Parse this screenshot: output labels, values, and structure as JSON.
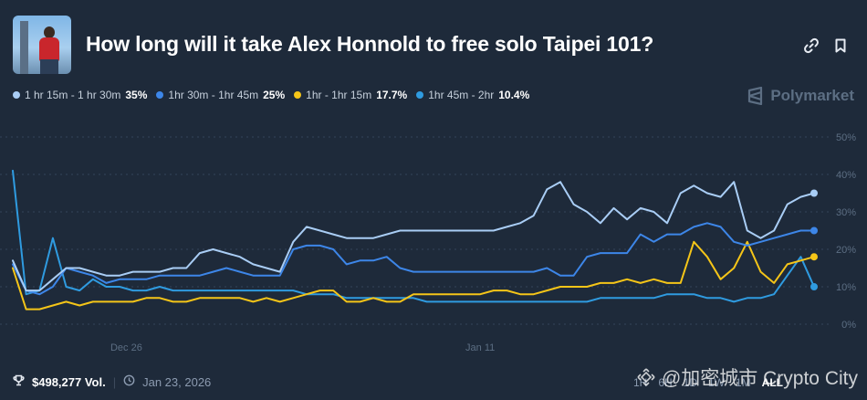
{
  "header": {
    "title": "How long will it take Alex Honnold to free solo Taipei 101?",
    "link_icon": "link-icon",
    "bookmark_icon": "bookmark-icon"
  },
  "legend": [
    {
      "label": "1 hr 15m - 1 hr 30m",
      "pct": "35%",
      "color": "#a9cdf5"
    },
    {
      "label": "1hr 30m - 1hr 45m",
      "pct": "25%",
      "color": "#3d86e8"
    },
    {
      "label": "1hr - 1hr 15m",
      "pct": "17.7%",
      "color": "#f5c518"
    },
    {
      "label": "1hr 45m - 2hr",
      "pct": "10.4%",
      "color": "#2f9be0"
    }
  ],
  "brand": {
    "name": "Polymarket"
  },
  "footer": {
    "volume": "$498,277 Vol.",
    "date": "Jan 23, 2026"
  },
  "ranges": [
    "1H",
    "6H",
    "1D",
    "1W",
    "1M",
    "ALL"
  ],
  "active_range": "ALL",
  "watermark": "@加密城市 Crypto City",
  "chart_data": {
    "type": "line",
    "x_tick_labels": [
      "Dec 26",
      "Jan 11"
    ],
    "y_tick_labels": [
      "0%",
      "10%",
      "20%",
      "30%",
      "40%",
      "50%"
    ],
    "ylim": [
      0,
      50
    ],
    "grid": true,
    "series": [
      {
        "name": "1 hr 15m - 1 hr 30m",
        "color": "#a9cdf5",
        "x": [
          0,
          1,
          2,
          3,
          4,
          5,
          6,
          7,
          8,
          9,
          10,
          11,
          12,
          13,
          14,
          15,
          16,
          17,
          18,
          19,
          20,
          21,
          22,
          23,
          24,
          25,
          26,
          27,
          28,
          29,
          30,
          31,
          32,
          33,
          34,
          35,
          36,
          37,
          38,
          39,
          40,
          41,
          42,
          43,
          44,
          45,
          46,
          47,
          48,
          49,
          50,
          51,
          52,
          53,
          54,
          55,
          56,
          57,
          58,
          59,
          60
        ],
        "values": [
          17,
          9,
          9,
          12,
          15,
          15,
          14,
          13,
          13,
          14,
          14,
          14,
          15,
          15,
          19,
          20,
          19,
          18,
          16,
          15,
          14,
          22,
          26,
          25,
          24,
          23,
          23,
          23,
          24,
          25,
          25,
          25,
          25,
          25,
          25,
          25,
          25,
          26,
          27,
          29,
          36,
          38,
          32,
          30,
          27,
          31,
          28,
          31,
          30,
          27,
          35,
          37,
          35,
          34,
          38,
          25,
          23,
          25,
          32,
          34,
          35
        ],
        "end_label": "35%"
      },
      {
        "name": "1hr 30m - 1hr 45m",
        "color": "#3d86e8",
        "x": [
          0,
          1,
          2,
          3,
          4,
          5,
          6,
          7,
          8,
          9,
          10,
          11,
          12,
          13,
          14,
          15,
          16,
          17,
          18,
          19,
          20,
          21,
          22,
          23,
          24,
          25,
          26,
          27,
          28,
          29,
          30,
          31,
          32,
          33,
          34,
          35,
          36,
          37,
          38,
          39,
          40,
          41,
          42,
          43,
          44,
          45,
          46,
          47,
          48,
          49,
          50,
          51,
          52,
          53,
          54,
          55,
          56,
          57,
          58,
          59,
          60
        ],
        "values": [
          16,
          9,
          8,
          10,
          15,
          14,
          13,
          11,
          12,
          12,
          12,
          13,
          13,
          13,
          13,
          14,
          15,
          14,
          13,
          13,
          13,
          20,
          21,
          21,
          20,
          16,
          17,
          17,
          18,
          15,
          14,
          14,
          14,
          14,
          14,
          14,
          14,
          14,
          14,
          14,
          15,
          13,
          13,
          18,
          19,
          19,
          19,
          24,
          22,
          24,
          24,
          26,
          27,
          26,
          22,
          21,
          22,
          23,
          24,
          25,
          25
        ],
        "end_label": "25%"
      },
      {
        "name": "1hr - 1hr 15m",
        "color": "#f5c518",
        "x": [
          0,
          1,
          2,
          3,
          4,
          5,
          6,
          7,
          8,
          9,
          10,
          11,
          12,
          13,
          14,
          15,
          16,
          17,
          18,
          19,
          20,
          21,
          22,
          23,
          24,
          25,
          26,
          27,
          28,
          29,
          30,
          31,
          32,
          33,
          34,
          35,
          36,
          37,
          38,
          39,
          40,
          41,
          42,
          43,
          44,
          45,
          46,
          47,
          48,
          49,
          50,
          51,
          52,
          53,
          54,
          55,
          56,
          57,
          58,
          59,
          60
        ],
        "values": [
          15,
          4,
          4,
          5,
          6,
          5,
          6,
          6,
          6,
          6,
          7,
          7,
          6,
          6,
          7,
          7,
          7,
          7,
          6,
          7,
          6,
          7,
          8,
          9,
          9,
          6,
          6,
          7,
          6,
          6,
          8,
          8,
          8,
          8,
          8,
          8,
          9,
          9,
          8,
          8,
          9,
          10,
          10,
          10,
          11,
          11,
          12,
          11,
          12,
          11,
          11,
          22,
          18,
          12,
          15,
          22,
          14,
          11,
          16,
          17,
          18
        ],
        "end_label": "17.7%"
      },
      {
        "name": "1hr 45m - 2hr",
        "color": "#2f9be0",
        "x": [
          0,
          1,
          2,
          3,
          4,
          5,
          6,
          7,
          8,
          9,
          10,
          11,
          12,
          13,
          14,
          15,
          16,
          17,
          18,
          19,
          20,
          21,
          22,
          23,
          24,
          25,
          26,
          27,
          28,
          29,
          30,
          31,
          32,
          33,
          34,
          35,
          36,
          37,
          38,
          39,
          40,
          41,
          42,
          43,
          44,
          45,
          46,
          47,
          48,
          49,
          50,
          51,
          52,
          53,
          54,
          55,
          56,
          57,
          58,
          59,
          60
        ],
        "values": [
          41,
          8,
          9,
          23,
          10,
          9,
          12,
          10,
          10,
          9,
          9,
          10,
          9,
          9,
          9,
          9,
          9,
          9,
          9,
          9,
          9,
          9,
          8,
          8,
          8,
          7,
          7,
          7,
          7,
          7,
          7,
          6,
          6,
          6,
          6,
          6,
          6,
          6,
          6,
          6,
          6,
          6,
          6,
          6,
          7,
          7,
          7,
          7,
          7,
          8,
          8,
          8,
          7,
          7,
          6,
          7,
          7,
          8,
          13,
          18,
          10
        ],
        "end_label": "10.4%"
      }
    ]
  }
}
